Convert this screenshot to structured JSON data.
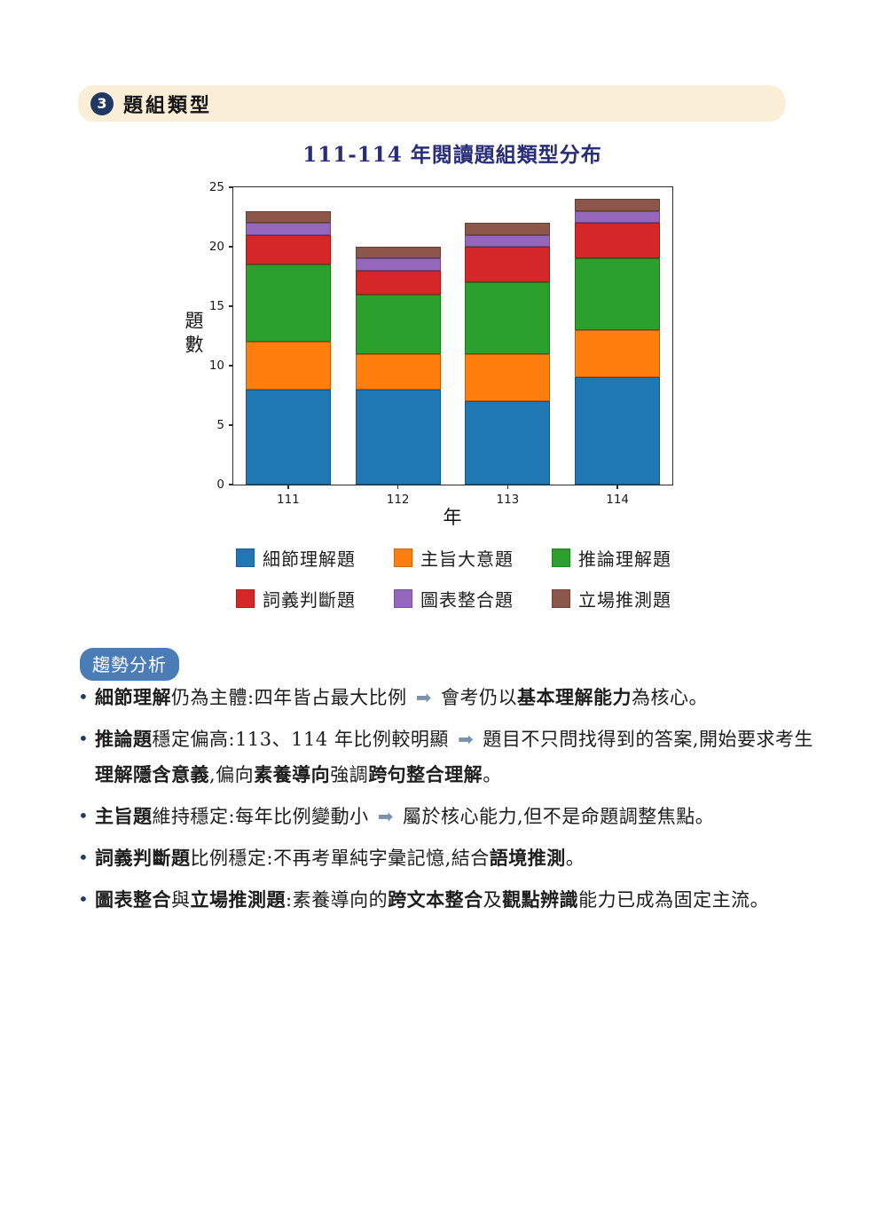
{
  "section_header": {
    "number": "3",
    "title": "題組類型"
  },
  "chart_data": {
    "type": "bar",
    "stacked": true,
    "title": "111-114 年閱讀題組類型分布",
    "xlabel": "年",
    "ylabel": "題數",
    "categories": [
      "111",
      "112",
      "113",
      "114"
    ],
    "series": [
      {
        "name": "細節理解題",
        "color": "#1f77b4",
        "values": [
          8,
          8,
          7,
          9
        ]
      },
      {
        "name": "主旨大意題",
        "color": "#ff7f0e",
        "values": [
          4,
          3,
          4,
          4
        ]
      },
      {
        "name": "推論理解題",
        "color": "#2ca02c",
        "values": [
          6.5,
          5,
          6,
          6
        ]
      },
      {
        "name": "詞義判斷題",
        "color": "#d62728",
        "values": [
          2.5,
          2,
          3,
          3
        ]
      },
      {
        "name": "圖表整合題",
        "color": "#9467bd",
        "values": [
          1,
          1,
          1,
          1
        ]
      },
      {
        "name": "立場推測題",
        "color": "#8c564b",
        "values": [
          1,
          1,
          1,
          1
        ]
      }
    ],
    "totals": [
      23,
      20,
      22,
      24
    ],
    "ylim": [
      0,
      25
    ],
    "yticks": [
      0,
      5,
      10,
      15,
      20,
      25
    ],
    "grid": false,
    "legend_position": "bottom"
  },
  "trend": {
    "badge": "趨勢分析",
    "badge_color": "#4a7cb8",
    "arrow_glyph": "➡",
    "arrow_color": "#7b92ad",
    "bullets": [
      {
        "segments": [
          {
            "t": "細節理解",
            "b": true
          },
          {
            "t": "仍為主體:四年皆占最大比例"
          },
          {
            "arrow": true
          },
          {
            "t": "會考仍以"
          },
          {
            "t": "基本理解能力",
            "b": true
          },
          {
            "t": "為核心。"
          }
        ]
      },
      {
        "segments": [
          {
            "t": "推論題",
            "b": true
          },
          {
            "t": "穩定偏高:113、114 年比例較明顯"
          },
          {
            "arrow": true
          },
          {
            "t": "題目不只問找得到的答案,開始要求考生"
          },
          {
            "t": "理解隱含意義",
            "b": true
          },
          {
            "t": ",偏向"
          },
          {
            "t": "素養導向",
            "b": true
          },
          {
            "t": "強調"
          },
          {
            "t": "跨句整合理解",
            "b": true
          },
          {
            "t": "。"
          }
        ]
      },
      {
        "segments": [
          {
            "t": "主旨題",
            "b": true
          },
          {
            "t": "維持穩定:每年比例變動小"
          },
          {
            "arrow": true
          },
          {
            "t": "屬於核心能力,但不是命題調整焦點。"
          }
        ]
      },
      {
        "segments": [
          {
            "t": "詞義判斷題",
            "b": true
          },
          {
            "t": "比例穩定:不再考單純字彙記憶,結合"
          },
          {
            "t": "語境推測",
            "b": true
          },
          {
            "t": "。"
          }
        ]
      },
      {
        "segments": [
          {
            "t": "圖表整合",
            "b": true
          },
          {
            "t": "與"
          },
          {
            "t": "立場推測題",
            "b": true
          },
          {
            "t": ":素養導向的"
          },
          {
            "t": "跨文本整合",
            "b": true
          },
          {
            "t": "及"
          },
          {
            "t": "觀點辨識",
            "b": true
          },
          {
            "t": "能力已成為固定主流。"
          }
        ]
      }
    ]
  }
}
